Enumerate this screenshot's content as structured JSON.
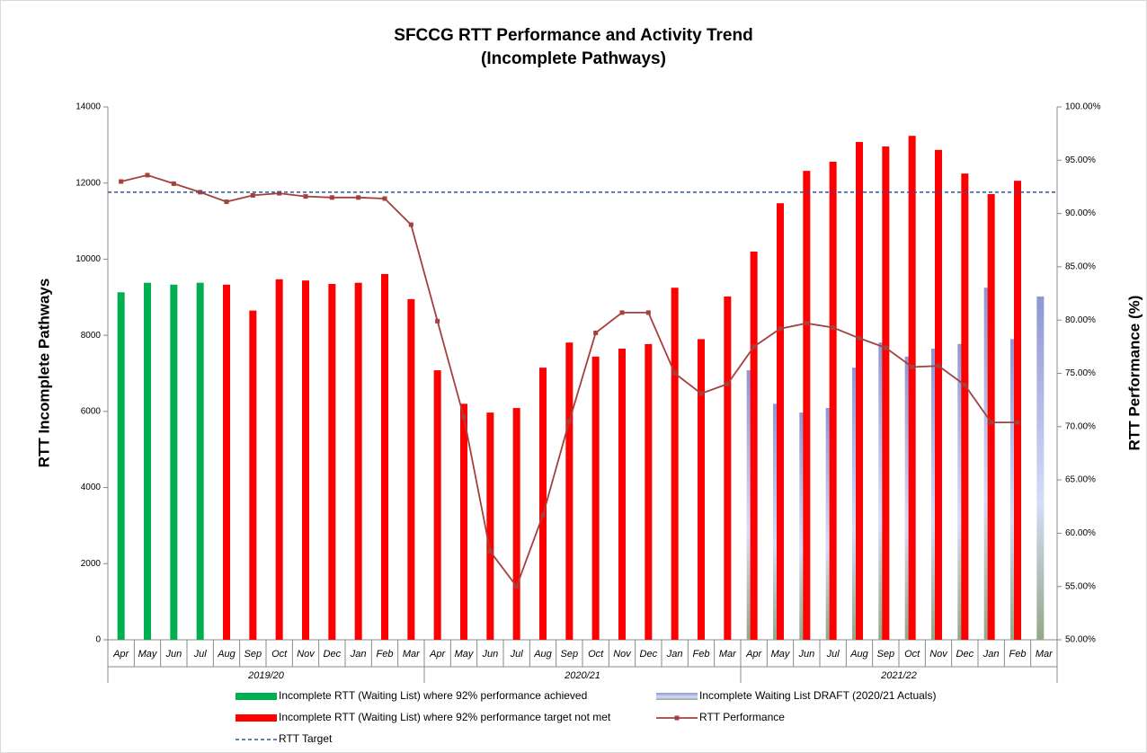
{
  "chart_data": {
    "type": "bar",
    "title": "SFCCG RTT Performance and Activity Trend",
    "subtitle": "(Incomplete Pathways)",
    "y_label": "RTT Incomplete Pathways",
    "y2_label": "RTT Performance (%)",
    "categories": [
      "Apr",
      "May",
      "Jun",
      "Jul",
      "Aug",
      "Sep",
      "Oct",
      "Nov",
      "Dec",
      "Jan",
      "Feb",
      "Mar",
      "Apr",
      "May",
      "Jun",
      "Jul",
      "Aug",
      "Sep",
      "Oct",
      "Nov",
      "Dec",
      "Jan",
      "Feb",
      "Mar",
      "Apr",
      "May",
      "Jun",
      "Jul",
      "Aug",
      "Sep",
      "Oct",
      "Nov",
      "Dec",
      "Jan",
      "Feb",
      "Mar"
    ],
    "groups": [
      {
        "label": "2019/20",
        "size": 12
      },
      {
        "label": "2020/21",
        "size": 12
      },
      {
        "label": "2021/22",
        "size": 12
      }
    ],
    "ylim": [
      0,
      14000
    ],
    "yticks": [
      0,
      2000,
      4000,
      6000,
      8000,
      10000,
      12000,
      14000
    ],
    "y2lim": [
      50,
      100
    ],
    "y2ticks": [
      {
        "value": 50,
        "label": "50.00%"
      },
      {
        "value": 55,
        "label": "55.00%"
      },
      {
        "value": 60,
        "label": "60.00%"
      },
      {
        "value": 65,
        "label": "65.00%"
      },
      {
        "value": 70,
        "label": "70.00%"
      },
      {
        "value": 75,
        "label": "75.00%"
      },
      {
        "value": 80,
        "label": "80.00%"
      },
      {
        "value": 85,
        "label": "85.00%"
      },
      {
        "value": 90,
        "label": "90.00%"
      },
      {
        "value": 95,
        "label": "95.00%"
      },
      {
        "value": 100,
        "label": "100.00%"
      }
    ],
    "series": [
      {
        "name": "Incomplete RTT (Waiting List) where 92% performance achieved",
        "type": "bar",
        "color": "#00b050",
        "values": [
          9130,
          9380,
          9330,
          9380,
          null,
          null,
          null,
          null,
          null,
          null,
          null,
          null,
          null,
          null,
          null,
          null,
          null,
          null,
          null,
          null,
          null,
          null,
          null,
          null,
          null,
          null,
          null,
          null,
          null,
          null,
          null,
          null,
          null,
          null,
          null,
          null
        ]
      },
      {
        "name": "Incomplete Waiting List DRAFT (2020/21 Actuals)",
        "type": "bar",
        "style": "gradient",
        "color": "#8f97d4",
        "values": [
          null,
          null,
          null,
          null,
          null,
          null,
          null,
          null,
          null,
          null,
          null,
          null,
          null,
          null,
          null,
          null,
          null,
          null,
          null,
          null,
          null,
          null,
          null,
          null,
          7080,
          6200,
          5970,
          6090,
          7150,
          7810,
          7440,
          7650,
          7770,
          9250,
          7900,
          9020
        ]
      },
      {
        "name": "Incomplete RTT (Waiting List) where 92% performance target not met",
        "type": "bar",
        "color": "#ff0000",
        "values": [
          null,
          null,
          null,
          null,
          9330,
          8650,
          9470,
          9440,
          9350,
          9380,
          9610,
          8950,
          7080,
          6200,
          5970,
          6090,
          7150,
          7810,
          7440,
          7650,
          7770,
          9250,
          7900,
          9020,
          10200,
          11470,
          12320,
          12560,
          13080,
          12960,
          13240,
          12870,
          12250,
          11710,
          12060,
          null
        ]
      },
      {
        "name": "RTT Performance",
        "type": "line",
        "axis": "y2",
        "color": "#a5403d",
        "values": [
          93.0,
          93.6,
          92.8,
          92.0,
          91.1,
          91.7,
          91.9,
          91.6,
          91.5,
          91.5,
          91.4,
          88.95,
          79.9,
          70.9,
          58.3,
          55.0,
          61.7,
          70.5,
          78.8,
          80.7,
          80.7,
          75.0,
          73.1,
          74.0,
          77.5,
          79.2,
          79.7,
          79.3,
          78.3,
          77.4,
          75.6,
          75.7,
          73.9,
          70.4,
          70.4,
          null
        ]
      },
      {
        "name": "RTT Target",
        "type": "target",
        "axis": "y2",
        "color": "#2f5597",
        "value": 92
      }
    ]
  }
}
